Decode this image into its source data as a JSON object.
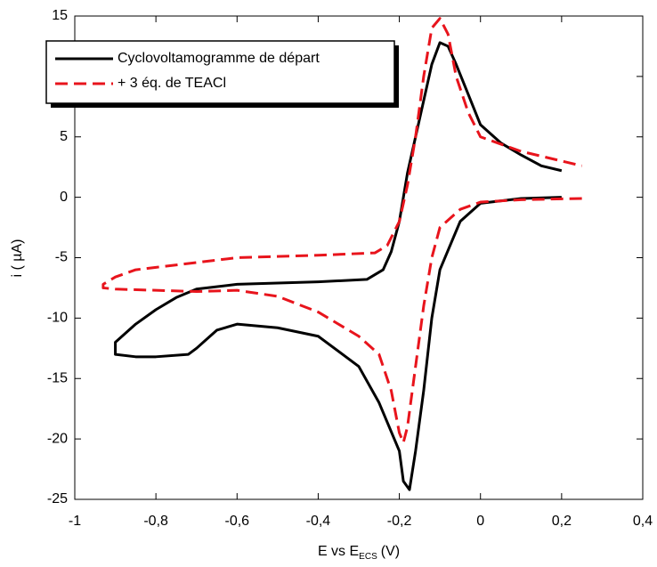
{
  "chart_data": {
    "type": "line",
    "xlabel": "E vs E",
    "xlabel_sub": "ECS",
    "xlabel_unit": "(V)",
    "ylabel": "i  ( µA)",
    "xlim": [
      -1,
      0.4
    ],
    "xticks": [
      -1,
      {
        "value": -0.8,
        "label": "-0,8"
      },
      {
        "value": -0.6,
        "label": "-0,6"
      },
      {
        "value": -0.4,
        "label": "-0,4"
      },
      {
        "value": -0.2,
        "label": "-0,2"
      },
      0,
      {
        "value": 0.2,
        "label": "0,2"
      },
      {
        "value": 0.4,
        "label": "0,4"
      }
    ],
    "ylim": [
      -25,
      15
    ],
    "yticks": [
      -25,
      -20,
      -15,
      -10,
      -5,
      0,
      5,
      10,
      15
    ],
    "grid": false,
    "legend": "upper left",
    "series": [
      {
        "name": "Cyclovoltamogramme de départ",
        "color": "#000000",
        "dash": false,
        "x": [
          0.2,
          0.1,
          0,
          -0.05,
          -0.1,
          -0.12,
          -0.14,
          -0.16,
          -0.175,
          -0.19,
          -0.2,
          -0.25,
          -0.3,
          -0.4,
          -0.5,
          -0.6,
          -0.65,
          -0.7,
          -0.72,
          -0.8,
          -0.85,
          -0.9,
          -0.9,
          -0.85,
          -0.8,
          -0.75,
          -0.7,
          -0.6,
          -0.4,
          -0.28,
          -0.24,
          -0.22,
          -0.2,
          -0.18,
          -0.16,
          -0.14,
          -0.12,
          -0.1,
          -0.08,
          -0.06,
          -0.03,
          0,
          0.05,
          0.1,
          0.15,
          0.2
        ],
        "values": [
          0,
          -0.1,
          -0.5,
          -2,
          -6,
          -10,
          -16,
          -21,
          -24.2,
          -23.5,
          -21,
          -17,
          -14,
          -11.5,
          -10.8,
          -10.5,
          -11,
          -12.5,
          -13,
          -13.2,
          -13.2,
          -13,
          -12,
          -10.5,
          -9.3,
          -8.3,
          -7.6,
          -7.2,
          -7,
          -6.8,
          -6,
          -4.5,
          -2,
          2,
          5,
          8,
          11,
          12.8,
          12.5,
          11,
          8.5,
          6,
          4.5,
          3.5,
          2.6,
          2.2
        ]
      },
      {
        "name": "+ 3 éq. de TEACl",
        "color": "#e8141c",
        "dash": true,
        "x": [
          0.25,
          0.1,
          0,
          -0.05,
          -0.1,
          -0.12,
          -0.14,
          -0.16,
          -0.18,
          -0.19,
          -0.2,
          -0.22,
          -0.25,
          -0.3,
          -0.4,
          -0.5,
          -0.6,
          -0.7,
          -0.8,
          -0.9,
          -0.93,
          -0.93,
          -0.9,
          -0.85,
          -0.8,
          -0.6,
          -0.4,
          -0.26,
          -0.23,
          -0.2,
          -0.18,
          -0.16,
          -0.14,
          -0.12,
          -0.1,
          -0.08,
          -0.06,
          -0.03,
          0,
          0.1,
          0.2,
          0.25
        ],
        "values": [
          -0.1,
          -0.2,
          -0.4,
          -1,
          -2.5,
          -5,
          -9,
          -14,
          -19,
          -20.3,
          -19.5,
          -16,
          -13,
          -11.5,
          -9.5,
          -8.2,
          -7.7,
          -7.8,
          -7.7,
          -7.6,
          -7.5,
          -7.2,
          -6.6,
          -6,
          -5.8,
          -5,
          -4.8,
          -4.6,
          -4,
          -2,
          1,
          5,
          10,
          14,
          14.8,
          13.5,
          10,
          7,
          5,
          3.8,
          3,
          2.6
        ]
      }
    ]
  }
}
